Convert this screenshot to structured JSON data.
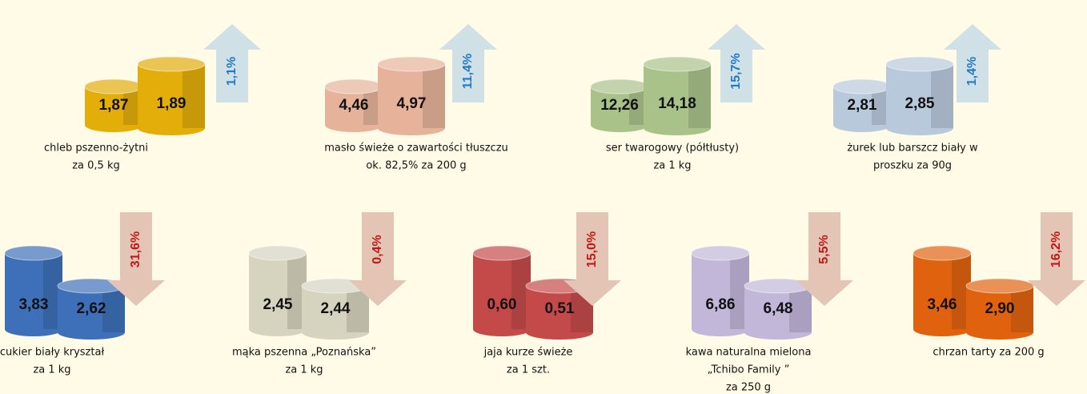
{
  "top_row": [
    {
      "label_lines": [
        "chleb pszenno-żytni",
        "za 0,5 kg"
      ],
      "values": [
        "1,87",
        "1,89"
      ],
      "change": "1,1%",
      "direction": "up",
      "color": "#e3ad0a"
    },
    {
      "label_lines": [
        "masło świeże o zawartości tłuszczu",
        "ok. 82,5% za 200 g"
      ],
      "values": [
        "4,46",
        "4,97"
      ],
      "change": "11,4%",
      "direction": "up",
      "color": "#e6b39a"
    },
    {
      "label_lines": [
        "ser twarogowy (półtłusty)",
        "za 1 kg"
      ],
      "values": [
        "12,26",
        "14,18"
      ],
      "change": "15,7%",
      "direction": "up",
      "color": "#a9c28a"
    },
    {
      "label_lines": [
        "żurek lub barszcz biały  w",
        "proszku za 90g"
      ],
      "values": [
        "2,81",
        "2,85"
      ],
      "change": "1,4%",
      "direction": "up",
      "color": "#b9c9dc"
    }
  ],
  "bottom_row": [
    {
      "label_lines": [
        "cukier biały kryształ",
        "za 1 kg"
      ],
      "values": [
        "3,83",
        "2,62"
      ],
      "change": "31,6%",
      "direction": "down",
      "color": "#3d70b8"
    },
    {
      "label_lines": [
        "mąka pszenna  „Poznańska”",
        "za 1 kg"
      ],
      "values": [
        "2,45",
        "2,44"
      ],
      "change": "0,4%",
      "direction": "down",
      "color": "#d6d3bf"
    },
    {
      "label_lines": [
        "jaja kurze świeże",
        "za 1 szt."
      ],
      "values": [
        "0,60",
        "0,51"
      ],
      "change": "15,0%",
      "direction": "down",
      "color": "#c44a4a"
    },
    {
      "label_lines": [
        "kawa naturalna mielona",
        "„Tchibo Family ”",
        "za 250 g"
      ],
      "values": [
        "6,86",
        "6,48"
      ],
      "change": "5,5%",
      "direction": "down",
      "color": "#c2b6d9"
    },
    {
      "label_lines": [
        "chrzan  tarty za 200 g"
      ],
      "values": [
        "3,46",
        "2,90"
      ],
      "change": "16,2%",
      "direction": "down",
      "color": "#e0620f"
    }
  ]
}
